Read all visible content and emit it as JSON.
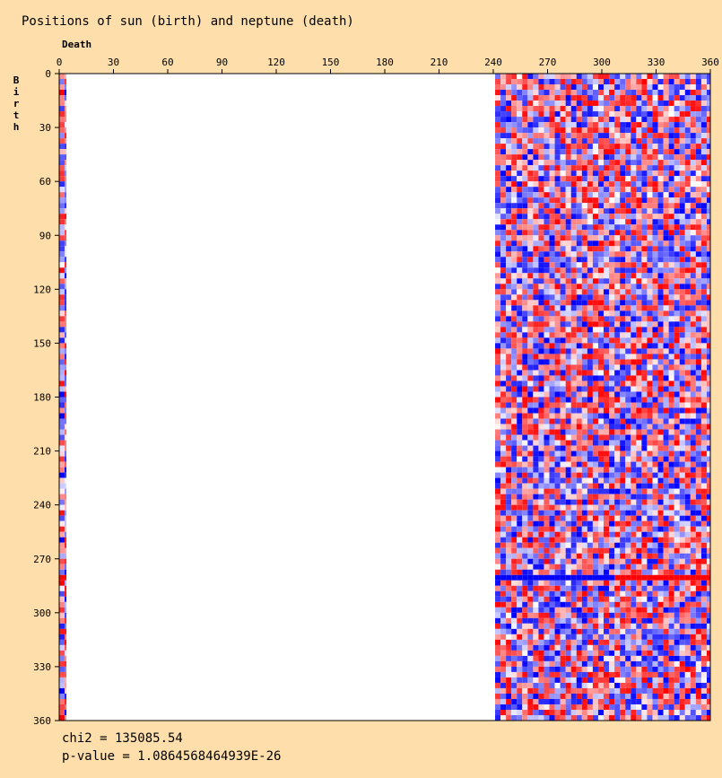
{
  "chart_data": {
    "type": "heatmap",
    "title": "Positions of sun (birth) and neptune (death)",
    "xlabel": "Death",
    "ylabel": "Birth",
    "x_ticks": [
      0,
      30,
      60,
      90,
      120,
      150,
      180,
      210,
      240,
      270,
      300,
      330,
      360
    ],
    "y_ticks": [
      0,
      30,
      60,
      90,
      120,
      150,
      180,
      210,
      240,
      270,
      300,
      330,
      360
    ],
    "xlim": [
      0,
      360
    ],
    "ylim": [
      0,
      360
    ],
    "y_axis_inverted": true,
    "populated_death_ranges": [
      [
        0,
        4
      ],
      [
        241,
        360
      ]
    ],
    "highlight_birth_row": 279,
    "color_scale": {
      "low": "#0000ff",
      "mid": "#ffffff",
      "high": "#ff0000"
    }
  },
  "stats": {
    "chi2_label": "chi2 = 135085.54",
    "pvalue_label": "p-value = 1.0864568464939E-26"
  }
}
